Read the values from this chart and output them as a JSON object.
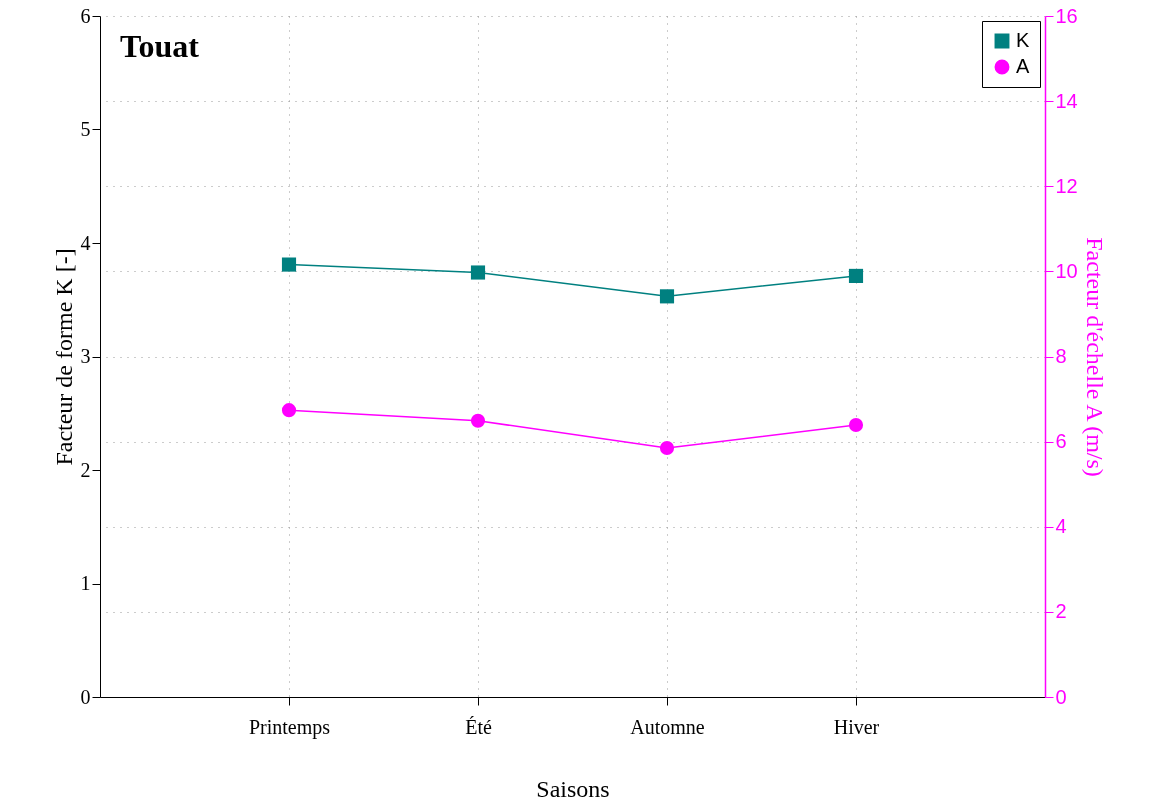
{
  "chart_data": {
    "type": "line",
    "title": "Touat",
    "xlabel": "Saisons",
    "ylabel": "Facteur de forme K [-]",
    "y2label": "Facteur d'échelle A (m/s)",
    "categories": [
      "Printemps",
      "Été",
      "Automne",
      "Hiver"
    ],
    "series": [
      {
        "name": "K",
        "color": "#008080",
        "marker": "square",
        "values": [
          3.81,
          3.74,
          3.53,
          3.71
        ]
      },
      {
        "name": "A",
        "color": "#ff00ff",
        "marker": "circle",
        "axis": "y2",
        "values": [
          6.74,
          6.49,
          5.85,
          6.39
        ]
      }
    ],
    "ylim": [
      0,
      6
    ],
    "yticks": [
      0,
      1,
      2,
      3,
      4,
      5,
      6
    ],
    "y2lim": [
      0,
      16
    ],
    "y2ticks": [
      0,
      2,
      4,
      6,
      8,
      10,
      12,
      14,
      16
    ],
    "grid": true,
    "legend": "top right",
    "line_style": "solid"
  }
}
